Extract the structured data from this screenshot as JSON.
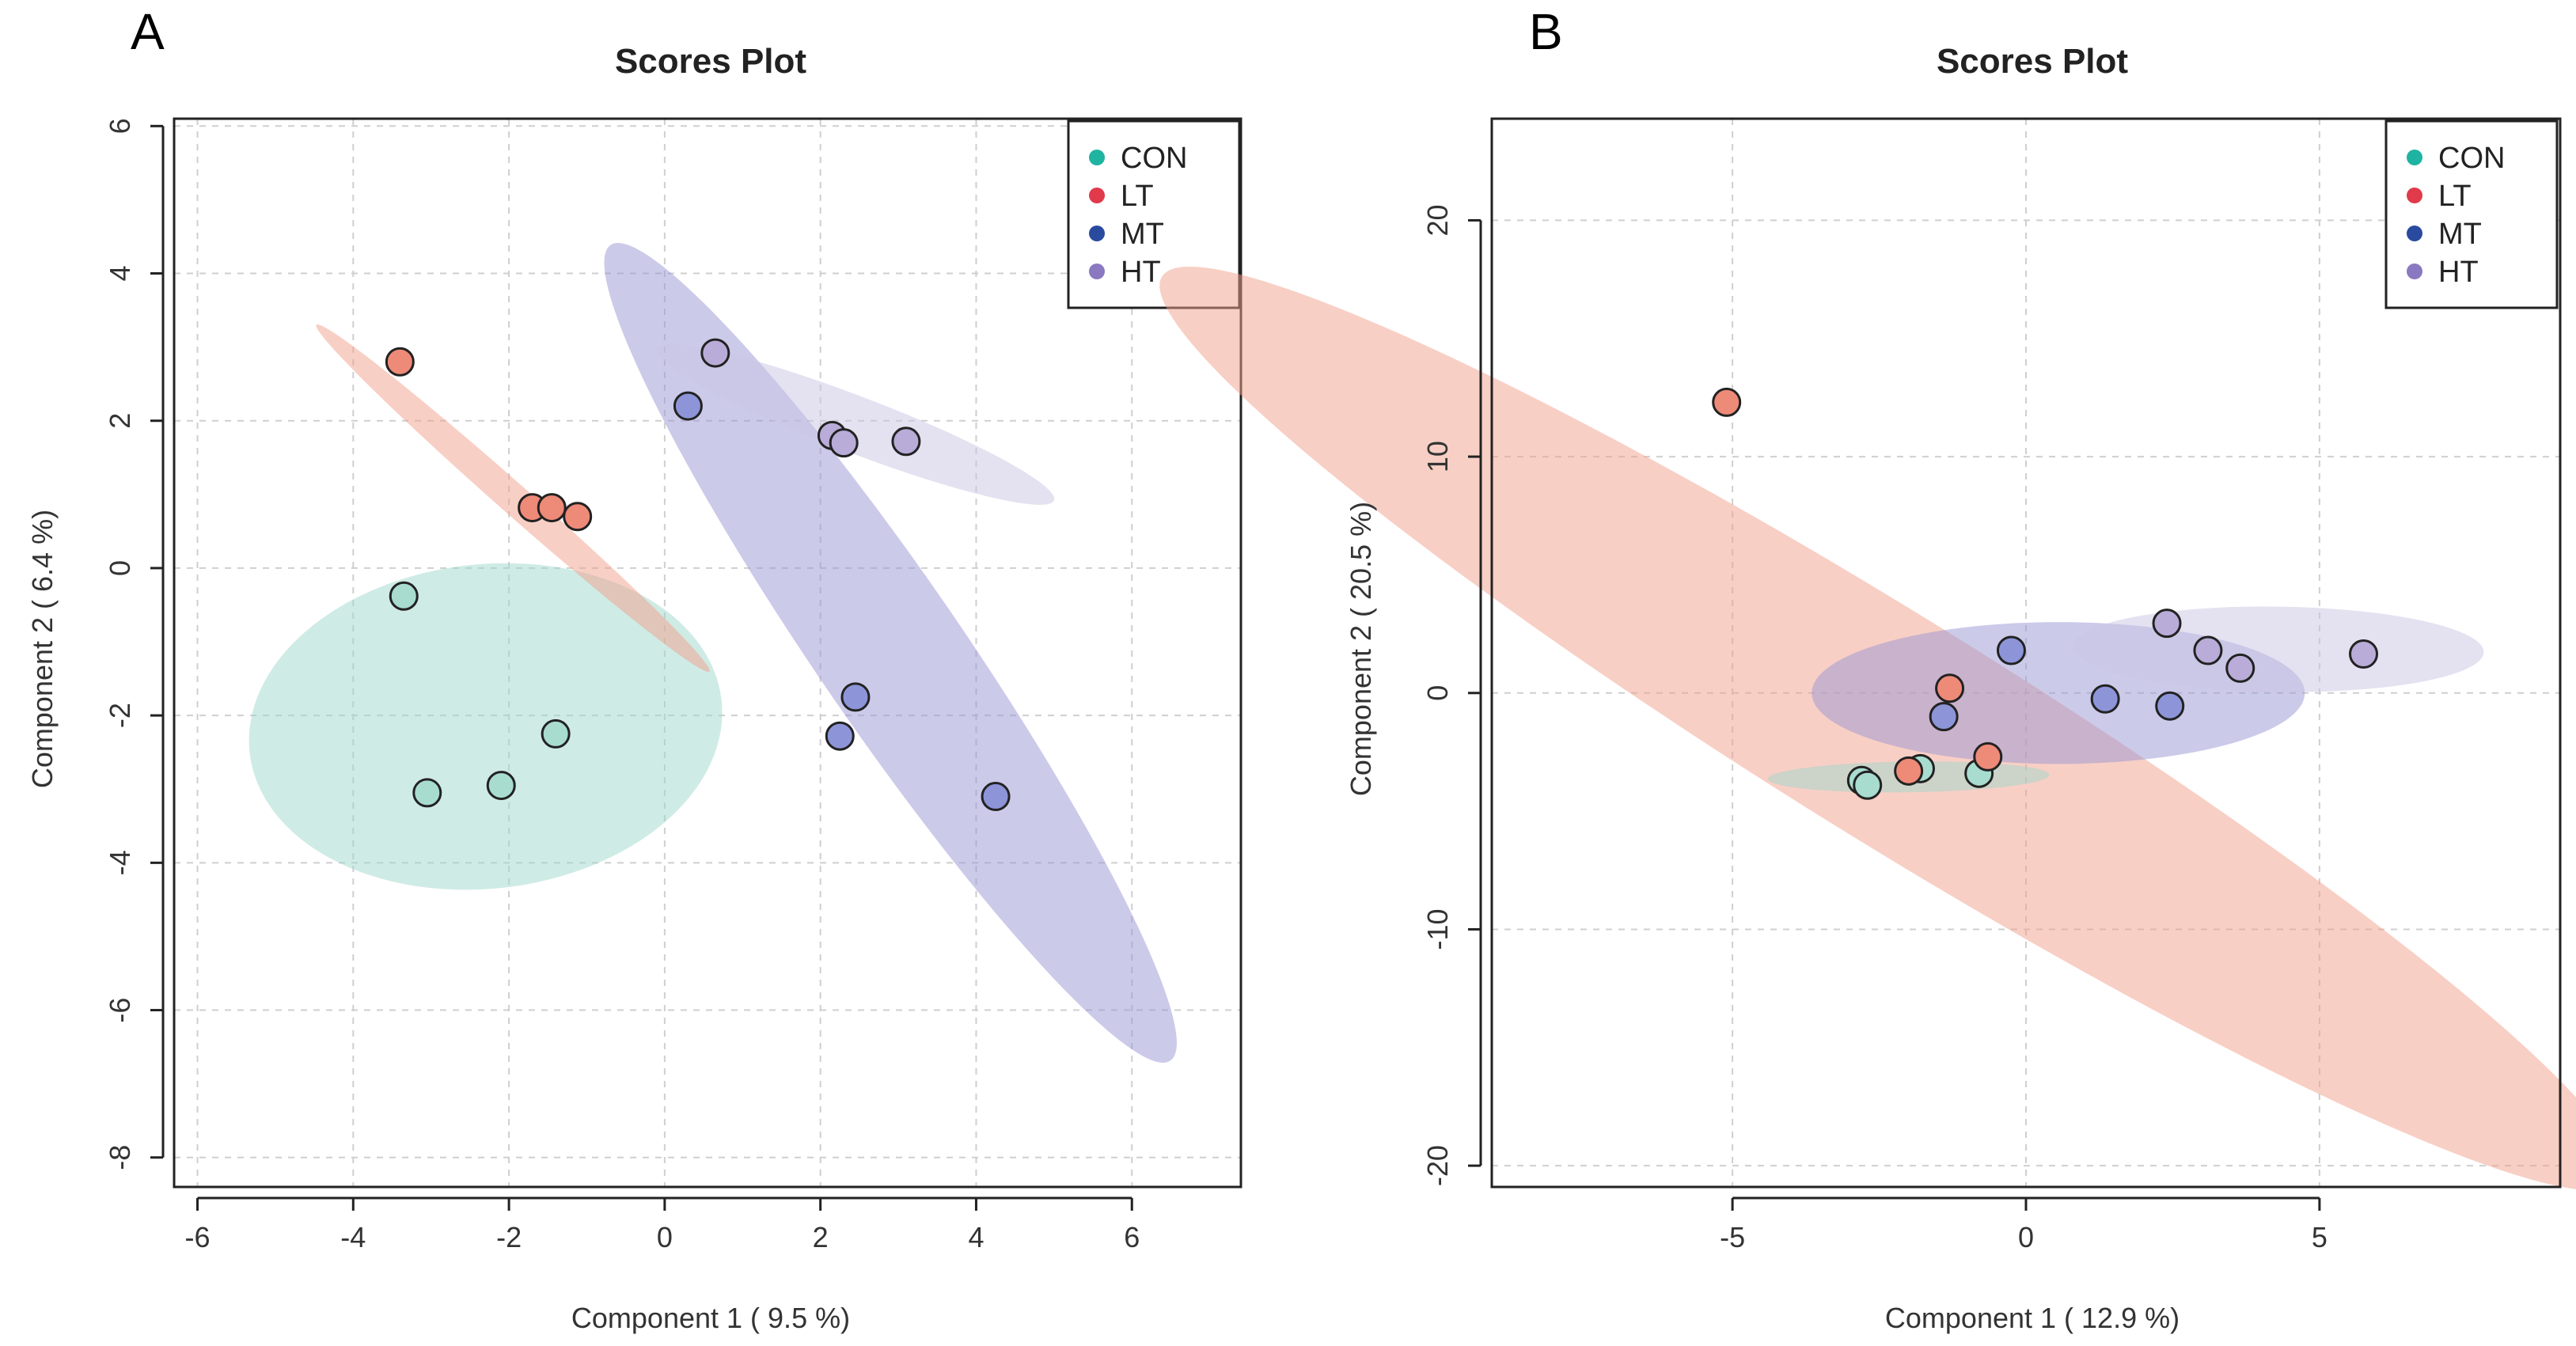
{
  "colors": {
    "CON": "#1fb3a1",
    "LT": "#e03a4b",
    "MT": "#2a4aa0",
    "HT": "#8a78c0",
    "ellipse_CON": "#9fd7cc",
    "ellipse_LT": "#f2a08c",
    "ellipse_MT": "#9a96d4",
    "ellipse_HT": "#c9c3e3",
    "point_CON": "#a8dccf",
    "point_LT": "#ee8a78",
    "point_MT": "#8d95d8",
    "point_HT": "#b9acd8"
  },
  "chart_data": [
    {
      "panel": "A",
      "type": "scatter",
      "title": "Scores Plot",
      "xlabel": "Component 1 ( 9.5 %)",
      "ylabel": "Component 2 ( 6.4 %)",
      "xlim": [
        -6.3,
        7.4
      ],
      "ylim": [
        -8.4,
        6.1
      ],
      "xticks": [
        -6,
        -4,
        -2,
        0,
        2,
        4,
        6
      ],
      "xtick_labels": [
        "-6",
        "-4",
        "-2",
        "0",
        "2",
        "4",
        "6"
      ],
      "yticks": [
        -8,
        -6,
        -4,
        -2,
        0,
        2,
        4,
        6
      ],
      "ytick_labels": [
        "-8",
        "-6",
        "-4",
        "-2",
        "0",
        "2",
        "4",
        "6"
      ],
      "legend": [
        "CON",
        "LT",
        "MT",
        "HT"
      ],
      "legend_position": "top-right",
      "series": [
        {
          "name": "CON",
          "points": [
            [
              -3.35,
              -0.38
            ],
            [
              -3.05,
              -3.05
            ],
            [
              -2.1,
              -2.95
            ],
            [
              -1.4,
              -2.25
            ]
          ]
        },
        {
          "name": "LT",
          "points": [
            [
              -3.4,
              2.8
            ],
            [
              -1.7,
              0.82
            ],
            [
              -1.45,
              0.82
            ],
            [
              -1.12,
              0.7
            ]
          ]
        },
        {
          "name": "MT",
          "points": [
            [
              0.3,
              2.2
            ],
            [
              2.25,
              -2.28
            ],
            [
              2.45,
              -1.75
            ],
            [
              4.25,
              -3.1
            ]
          ]
        },
        {
          "name": "HT",
          "points": [
            [
              0.65,
              2.92
            ],
            [
              2.15,
              1.8
            ],
            [
              2.3,
              1.7
            ],
            [
              3.1,
              1.72
            ]
          ]
        }
      ],
      "ellipses": [
        {
          "group": "CON",
          "cx": -2.3,
          "cy": -2.15,
          "rx": 2.2,
          "ry": 3.05,
          "angle": -84
        },
        {
          "group": "MT",
          "cx": 2.9,
          "cy": -1.15,
          "rx": 6.6,
          "ry": 0.95,
          "angle": -57
        },
        {
          "group": "HT",
          "cx": 2.45,
          "cy": 1.95,
          "rx": 2.75,
          "ry": 0.38,
          "angle": -22
        },
        {
          "group": "LT",
          "cx": -1.95,
          "cy": 0.95,
          "rx": 3.45,
          "ry": 0.2,
          "angle": -43
        }
      ]
    },
    {
      "panel": "B",
      "type": "scatter",
      "title": "Scores Plot",
      "xlabel": "Component 1 ( 12.9 %)",
      "ylabel": "Component 2 ( 20.5 %)",
      "xlim": [
        -9.1,
        9.1
      ],
      "ylim": [
        -20.9,
        24.3
      ],
      "xticks": [
        -5,
        0,
        5
      ],
      "xtick_labels": [
        "-5",
        "0",
        "5"
      ],
      "yticks": [
        -20,
        -10,
        0,
        10,
        20
      ],
      "ytick_labels": [
        "-20",
        "-10",
        "0",
        "10",
        "20"
      ],
      "legend": [
        "CON",
        "LT",
        "MT",
        "HT"
      ],
      "legend_position": "top-right",
      "series": [
        {
          "name": "CON",
          "points": [
            [
              -2.8,
              -3.7
            ],
            [
              -2.7,
              -3.9
            ],
            [
              -1.8,
              -3.2
            ],
            [
              -0.8,
              -3.4
            ]
          ]
        },
        {
          "name": "LT",
          "points": [
            [
              -5.1,
              12.3
            ],
            [
              -2.0,
              -3.3
            ],
            [
              -1.3,
              0.2
            ],
            [
              -0.65,
              -2.7
            ]
          ]
        },
        {
          "name": "MT",
          "points": [
            [
              -1.4,
              -1.0
            ],
            [
              -0.25,
              1.8
            ],
            [
              1.35,
              -0.25
            ],
            [
              2.45,
              -0.55
            ]
          ]
        },
        {
          "name": "HT",
          "points": [
            [
              2.4,
              2.95
            ],
            [
              3.1,
              1.8
            ],
            [
              3.65,
              1.05
            ],
            [
              5.75,
              1.65
            ]
          ]
        }
      ],
      "ellipses": [
        {
          "group": "LT",
          "cx": -2.3,
          "cy": -1.5,
          "rx": 22.8,
          "ry": 2.2,
          "angle": -57
        },
        {
          "group": "MT",
          "cx": 0.55,
          "cy": 0.0,
          "rx": 4.2,
          "ry": 3.0,
          "angle": 0
        },
        {
          "group": "HT",
          "cx": 4.3,
          "cy": 1.85,
          "rx": 3.5,
          "ry": 1.8,
          "angle": -2
        },
        {
          "group": "CON",
          "cx": -2.0,
          "cy": -3.55,
          "rx": 2.4,
          "ry": 0.65,
          "angle": 2
        }
      ]
    }
  ]
}
